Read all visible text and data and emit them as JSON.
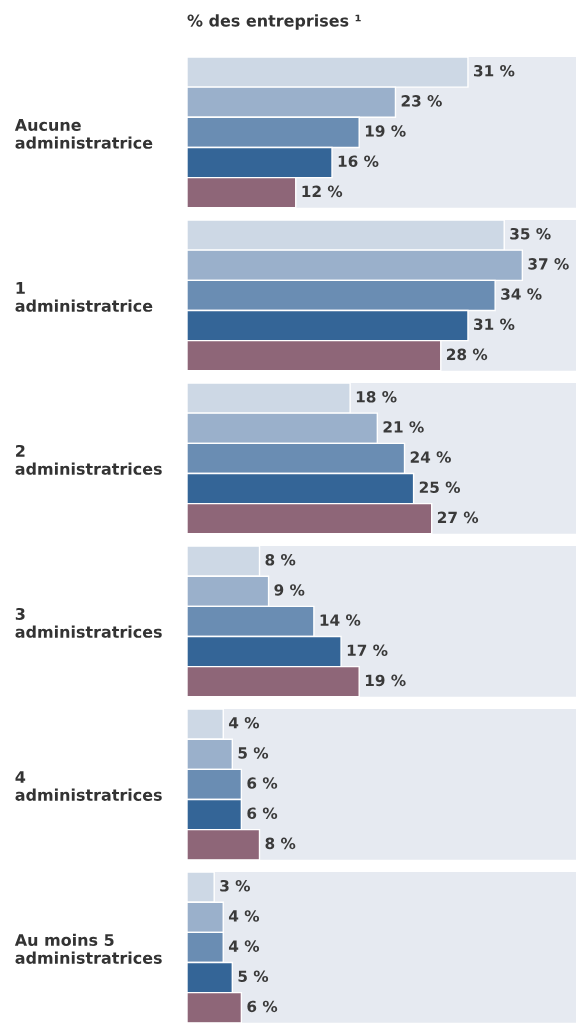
{
  "chart_data": {
    "type": "bar",
    "orientation": "horizontal",
    "title": "% des entreprises ¹",
    "categories": [
      "Aucune\nadministratrice",
      "1\nadministratrice",
      "2\nadministratrices",
      "3\nadministratrices",
      "4\nadministratrices",
      "Au moins 5\nadministratrices"
    ],
    "series": [
      {
        "color": "#cdd8e5",
        "values": [
          31,
          35,
          18,
          8,
          4,
          3
        ],
        "value_labels": [
          "31 %",
          "35 %",
          "18 %",
          "8 %",
          "4 %",
          "3 %"
        ]
      },
      {
        "color": "#9ab0cb",
        "values": [
          23,
          37,
          21,
          9,
          5,
          4
        ],
        "value_labels": [
          "23 %",
          "37 %",
          "21 %",
          "9 %",
          "5 %",
          "4 %"
        ]
      },
      {
        "color": "#6a8db3",
        "values": [
          19,
          34,
          24,
          14,
          6,
          4
        ],
        "value_labels": [
          "19 %",
          "34 %",
          "24 %",
          "14 %",
          "6 %",
          "4 %"
        ]
      },
      {
        "color": "#346597",
        "values": [
          16,
          31,
          25,
          17,
          6,
          5
        ],
        "value_labels": [
          "16 %",
          "31 %",
          "25 %",
          "17 %",
          "6 %",
          "5 %"
        ]
      },
      {
        "color": "#8e6678",
        "values": [
          12,
          28,
          27,
          19,
          8,
          6
        ],
        "value_labels": [
          "12 %",
          "28 %",
          "27 %",
          "19 %",
          "8 %",
          "6 %"
        ]
      }
    ],
    "bands": [
      {
        "axis": "y",
        "from": "Aucune\nadministratrice",
        "to": "Aucune\nadministratrice",
        "color": "#e6eaf1"
      },
      {
        "axis": "y",
        "from": "1\nadministratrice",
        "to": "1\nadministratrice",
        "color": "#e6eaf1"
      },
      {
        "axis": "y",
        "from": "2\nadministratrices",
        "to": "2\nadministratrices",
        "color": "#e6eaf1"
      },
      {
        "axis": "y",
        "from": "3\nadministratrices",
        "to": "3\nadministratrices",
        "color": "#e6eaf1"
      },
      {
        "axis": "y",
        "from": "4\nadministratrices",
        "to": "4\nadministratrices",
        "color": "#e6eaf1"
      },
      {
        "axis": "y",
        "from": "Au moins 5\nadministratrices",
        "to": "Au moins 5\nadministratrices",
        "color": "#e6eaf1"
      }
    ],
    "tick_labels": "y",
    "grid": false,
    "legend": false
  }
}
